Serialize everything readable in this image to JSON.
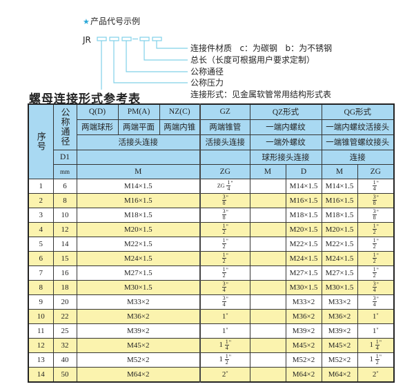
{
  "diagram": {
    "heading": "产品代号示例",
    "star_icon": "star-icon",
    "code_prefix": "JR",
    "dash": "-",
    "labels": [
      "连接件材质   c：为碳钢   b：为不锈钢",
      "总长（长度可根据用户要求定制）",
      "公称通径",
      "公称压力",
      "连接形式：见金属软管常用结构形式表"
    ],
    "accent": "#7fd0e8"
  },
  "table_title": "螺母连接形式参考表",
  "header": {
    "seq": "序号",
    "nominal": "公称通径",
    "d1": "D1",
    "mm": "mm",
    "row1": [
      "Q(D)",
      "PM(A)",
      "NZ(C)",
      "GZ",
      "QZ形式",
      "QG形式"
    ],
    "row2": [
      "两端球形",
      "两端平面",
      "两端内锥",
      "两端锥管",
      "一端内螺纹",
      "一端内螺纹活接头"
    ],
    "row3": [
      "活接头连接",
      "活接头连接",
      "一端外螺纹",
      "一端锥管螺纹接头"
    ],
    "row4": [
      "",
      "",
      "球形接头连接",
      "连接"
    ],
    "row5": [
      "M",
      "ZG",
      "M",
      "D",
      "M",
      "ZG"
    ]
  },
  "colors": {
    "header_bg": "#a9d9f2",
    "row_alt_bg": "#fbf3ae"
  },
  "rows": [
    {
      "no": "1",
      "dn": "6",
      "m": "M14×1.5",
      "zg": {
        "pre": "ZG",
        "w": "",
        "n": "1",
        "d": "4"
      },
      "qz_m": "",
      "qz_d": "M14×1.5",
      "qg_m": "M14×1.5",
      "qg_zg": {
        "pre": "",
        "w": "",
        "n": "1",
        "d": "4"
      }
    },
    {
      "no": "2",
      "dn": "8",
      "m": "M16×1.5",
      "zg": {
        "pre": "",
        "w": "",
        "n": "3",
        "d": "8"
      },
      "qz_m": "",
      "qz_d": "M16×1.5",
      "qg_m": "M16×1.5",
      "qg_zg": {
        "pre": "",
        "w": "",
        "n": "3",
        "d": "8"
      }
    },
    {
      "no": "3",
      "dn": "10",
      "m": "M18×1.5",
      "zg": {
        "pre": "",
        "w": "",
        "n": "3",
        "d": "8"
      },
      "qz_m": "",
      "qz_d": "M18×1.5",
      "qg_m": "M18×1.5",
      "qg_zg": {
        "pre": "",
        "w": "",
        "n": "3",
        "d": "8"
      }
    },
    {
      "no": "4",
      "dn": "12",
      "m": "M20×1.5",
      "zg": {
        "pre": "",
        "w": "",
        "n": "1",
        "d": "2"
      },
      "qz_m": "",
      "qz_d": "M20×1.5",
      "qg_m": "M20×1.5",
      "qg_zg": {
        "pre": "",
        "w": "",
        "n": "1",
        "d": "2"
      }
    },
    {
      "no": "5",
      "dn": "14",
      "m": "M22×1.5",
      "zg": {
        "pre": "",
        "w": "",
        "n": "1",
        "d": "2"
      },
      "qz_m": "",
      "qz_d": "M22×1.5",
      "qg_m": "M22×1.5",
      "qg_zg": {
        "pre": "",
        "w": "",
        "n": "1",
        "d": "2"
      }
    },
    {
      "no": "6",
      "dn": "15",
      "m": "M24×1.5",
      "zg": {
        "pre": "",
        "w": "",
        "n": "1",
        "d": "2"
      },
      "qz_m": "",
      "qz_d": "M24×1.5",
      "qg_m": "M24×1.5",
      "qg_zg": {
        "pre": "",
        "w": "",
        "n": "1",
        "d": "2"
      }
    },
    {
      "no": "7",
      "dn": "16",
      "m": "M27×1.5",
      "zg": {
        "pre": "",
        "w": "",
        "n": "1",
        "d": "2"
      },
      "qz_m": "",
      "qz_d": "M27×1.5",
      "qg_m": "M27×1.5",
      "qg_zg": {
        "pre": "",
        "w": "",
        "n": "1",
        "d": "2"
      }
    },
    {
      "no": "8",
      "dn": "18",
      "m": "M30×1.5",
      "zg": {
        "pre": "",
        "w": "",
        "n": "3",
        "d": "4"
      },
      "qz_m": "",
      "qz_d": "M30×1.5",
      "qg_m": "M30×1.5",
      "qg_zg": {
        "pre": "",
        "w": "",
        "n": "3",
        "d": "4"
      }
    },
    {
      "no": "9",
      "dn": "20",
      "m": "M33×2",
      "zg": {
        "pre": "",
        "w": "",
        "n": "3",
        "d": "4"
      },
      "qz_m": "",
      "qz_d": "M33×2",
      "qg_m": "M33×2",
      "qg_zg": {
        "pre": "",
        "w": "",
        "n": "3",
        "d": "4"
      }
    },
    {
      "no": "10",
      "dn": "22",
      "m": "M36×2",
      "zg": {
        "pre": "",
        "w": "1",
        "n": "",
        "d": ""
      },
      "qz_m": "",
      "qz_d": "M36×2",
      "qg_m": "M36×2",
      "qg_zg": {
        "pre": "",
        "w": "1",
        "n": "",
        "d": ""
      }
    },
    {
      "no": "11",
      "dn": "25",
      "m": "M39×2",
      "zg": {
        "pre": "",
        "w": "1",
        "n": "",
        "d": ""
      },
      "qz_m": "",
      "qz_d": "M39×2",
      "qg_m": "M39×2",
      "qg_zg": {
        "pre": "",
        "w": "1",
        "n": "",
        "d": ""
      }
    },
    {
      "no": "12",
      "dn": "32",
      "m": "M45×2",
      "zg": {
        "pre": "",
        "w": "1",
        "n": "1",
        "d": "4"
      },
      "qz_m": "",
      "qz_d": "M45×2",
      "qg_m": "M45×2",
      "qg_zg": {
        "pre": "",
        "w": "1",
        "n": "1",
        "d": "4"
      }
    },
    {
      "no": "13",
      "dn": "40",
      "m": "M52×2",
      "zg": {
        "pre": "",
        "w": "1",
        "n": "1",
        "d": "2"
      },
      "qz_m": "",
      "qz_d": "M52×2",
      "qg_m": "M52×2",
      "qg_zg": {
        "pre": "",
        "w": "1",
        "n": "1",
        "d": "2"
      }
    },
    {
      "no": "14",
      "dn": "50",
      "m": "M64×2",
      "zg": {
        "pre": "",
        "w": "2",
        "n": "",
        "d": ""
      },
      "qz_m": "",
      "qz_d": "M64×2",
      "qg_m": "M64×2",
      "qg_zg": {
        "pre": "",
        "w": "2",
        "n": "",
        "d": ""
      }
    }
  ]
}
